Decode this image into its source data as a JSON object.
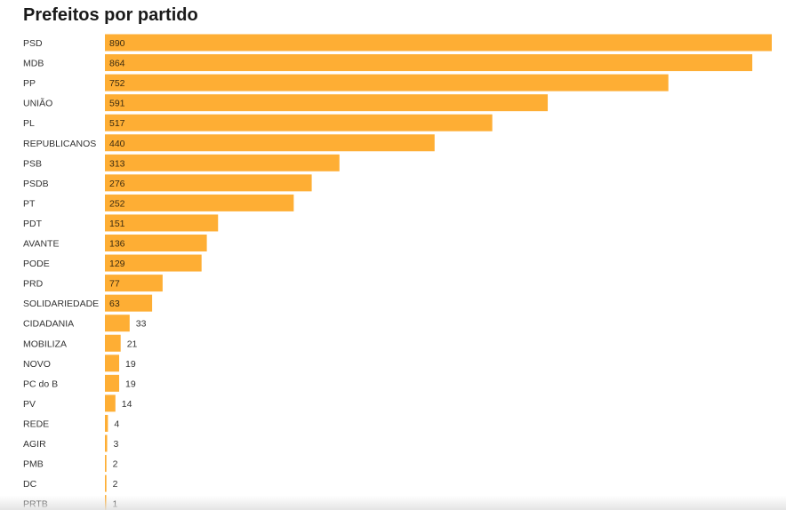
{
  "chart_data": {
    "type": "bar",
    "orientation": "horizontal",
    "title": "Prefeitos por partido",
    "xlabel": "",
    "ylabel": "",
    "xlim": [
      0,
      890
    ],
    "grid": false,
    "legend": "none",
    "categories": [
      "PSD",
      "MDB",
      "PP",
      "UNIÃO",
      "PL",
      "REPUBLICANOS",
      "PSB",
      "PSDB",
      "PT",
      "PDT",
      "AVANTE",
      "PODE",
      "PRD",
      "SOLIDARIEDADE",
      "CIDADANIA",
      "MOBILIZA",
      "NOVO",
      "PC do B",
      "PV",
      "REDE",
      "AGIR",
      "PMB",
      "DC",
      "PRTB"
    ],
    "values": [
      890,
      864,
      752,
      591,
      517,
      440,
      313,
      276,
      252,
      151,
      136,
      129,
      77,
      63,
      33,
      21,
      19,
      19,
      14,
      4,
      3,
      2,
      2,
      1
    ],
    "colors": {
      "bar": "#FEAE34",
      "label_inside": "#3a2a10",
      "label_outside": "#333333"
    }
  }
}
